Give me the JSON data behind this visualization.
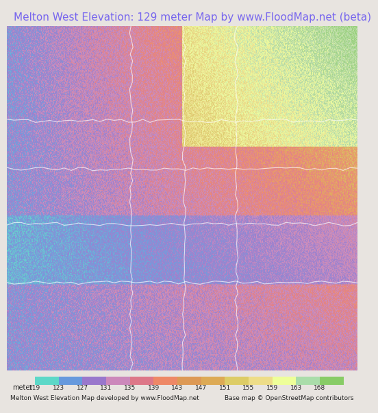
{
  "title": "Melton West Elevation: 129 meter Map by www.FloodMap.net (beta)",
  "title_color": "#7766ee",
  "title_fontsize": 11,
  "background_color": "#e8e4e0",
  "map_bg": "#e8e4e0",
  "fig_width": 5.12,
  "fig_height": 5.82,
  "colorbar_labels": [
    "119",
    "123",
    "127",
    "131",
    "135",
    "139",
    "143",
    "147",
    "151",
    "155",
    "159",
    "163",
    "168"
  ],
  "colorbar_colors": [
    "#5dd8c8",
    "#6699dd",
    "#9977cc",
    "#cc88bb",
    "#dd7788",
    "#ee8866",
    "#dd9955",
    "#ddaa55",
    "#ddcc66",
    "#eedd88",
    "#eeff99",
    "#aaddaa",
    "#88cc66"
  ],
  "footer_left": "Melton West Elevation Map developed by www.FloodMap.net",
  "footer_right": "Base map © OpenStreetMap contributors",
  "footer_fontsize": 6.5,
  "meter_label": "meter",
  "elevation_map_colors": [
    [
      "#00ccbb",
      0.0
    ],
    [
      "#5599ee",
      0.08
    ],
    [
      "#8866cc",
      0.17
    ],
    [
      "#cc77aa",
      0.25
    ],
    [
      "#ee6677",
      0.33
    ],
    [
      "#ff8844",
      0.42
    ],
    [
      "#ffaa33",
      0.5
    ],
    [
      "#ffcc44",
      0.58
    ],
    [
      "#ffee77",
      0.67
    ],
    [
      "#ffffaa",
      0.75
    ],
    [
      "#cceeaa",
      0.83
    ],
    [
      "#88cc66",
      1.0
    ]
  ],
  "map_annotation_color": "#9988aa",
  "road_color": "#ffffff",
  "label_color": "#444488"
}
